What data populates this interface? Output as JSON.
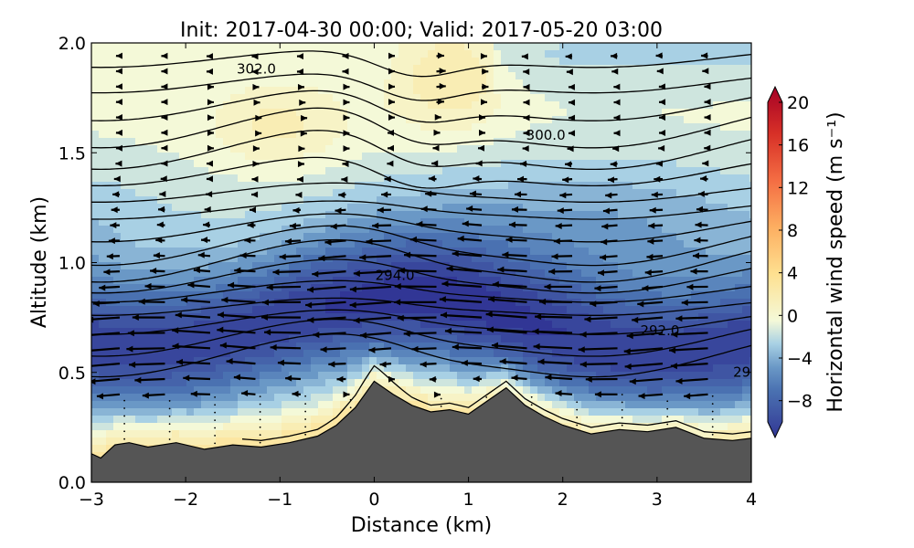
{
  "chart_data": {
    "type": "heatmap",
    "title": "Init: 2017-04-30 00:00; Valid: 2017-05-20 03:00",
    "xlabel": "Distance (km)",
    "ylabel": "Altitude (km)",
    "xlim": [
      -3,
      4
    ],
    "ylim": [
      0,
      2
    ],
    "x_ticks": [
      "−3",
      "−2",
      "−1",
      "0",
      "1",
      "2",
      "3",
      "4"
    ],
    "y_ticks": [
      "0.0",
      "0.5",
      "1.0",
      "1.5",
      "2.0"
    ],
    "grid": false,
    "colorbar": {
      "label": "Horizontal wind speed (m s⁻¹)",
      "ticks": [
        "20",
        "16",
        "12",
        "8",
        "4",
        "0",
        "−4",
        "−8"
      ],
      "range": [
        -10,
        20
      ],
      "colors": {
        "neg10": "#313695",
        "neg8": "#3f55a3",
        "neg6": "#4a71b1",
        "neg4": "#6a98c6",
        "neg2": "#a8d0e4",
        "zero": "#f4f9d8",
        "pos4": "#fee090",
        "pos8": "#fdae61",
        "pos12": "#f46d43",
        "pos16": "#d73027",
        "pos20": "#a50026"
      }
    },
    "contour_labels": [
      {
        "text": "302.0",
        "x": -1.25,
        "y": 1.86
      },
      {
        "text": "300.0",
        "x": 1.82,
        "y": 1.56
      },
      {
        "text": "294.0",
        "x": 0.22,
        "y": 0.92
      },
      {
        "text": "292.0",
        "x": 3.03,
        "y": 0.67
      },
      {
        "text": "29",
        "x": 3.9,
        "y": 0.48
      }
    ],
    "terrain": {
      "fill_color": "#555555",
      "x": [
        -3,
        -2.9,
        -2.75,
        -2.6,
        -2.4,
        -2.1,
        -1.8,
        -1.5,
        -1.2,
        -0.9,
        -0.6,
        -0.4,
        -0.2,
        0,
        0.2,
        0.4,
        0.6,
        0.8,
        1.0,
        1.2,
        1.4,
        1.6,
        1.8,
        2.0,
        2.3,
        2.6,
        2.9,
        3.2,
        3.5,
        3.8,
        4.0
      ],
      "y": [
        0.13,
        0.11,
        0.17,
        0.18,
        0.16,
        0.18,
        0.15,
        0.17,
        0.16,
        0.18,
        0.21,
        0.26,
        0.34,
        0.46,
        0.4,
        0.35,
        0.32,
        0.33,
        0.31,
        0.37,
        0.43,
        0.35,
        0.3,
        0.26,
        0.22,
        0.24,
        0.23,
        0.25,
        0.2,
        0.19,
        0.2
      ]
    }
  }
}
